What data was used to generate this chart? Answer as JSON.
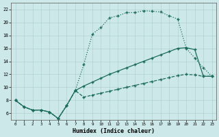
{
  "title": "",
  "xlabel": "Humidex (Indice chaleur)",
  "ylabel": "",
  "bg_color": "#cce8e8",
  "line_color": "#1a6b5a",
  "xlim": [
    -0.5,
    23.5
  ],
  "ylim": [
    5.0,
    23.0
  ],
  "xticks": [
    0,
    1,
    2,
    3,
    4,
    5,
    6,
    7,
    8,
    9,
    10,
    11,
    12,
    13,
    14,
    15,
    16,
    17,
    18,
    19,
    20,
    21,
    22,
    23
  ],
  "yticks": [
    6,
    8,
    10,
    12,
    14,
    16,
    18,
    20,
    22
  ],
  "curve1_x": [
    0,
    1,
    2,
    3,
    4,
    5,
    6,
    7,
    8,
    9,
    10,
    11,
    12,
    13,
    14,
    15,
    16,
    17,
    18,
    19,
    20,
    21,
    22,
    23
  ],
  "curve1_y": [
    8,
    7,
    6.5,
    6.5,
    6.2,
    5.2,
    7.2,
    9.5,
    13.5,
    18.2,
    19.2,
    20.7,
    21.0,
    21.5,
    21.5,
    21.8,
    21.7,
    21.6,
    21.0,
    20.5,
    16.0,
    14.5,
    13.0,
    11.7
  ],
  "curve2_x": [
    0,
    1,
    2,
    3,
    4,
    5,
    6,
    7,
    8,
    9,
    10,
    11,
    12,
    13,
    14,
    15,
    16,
    17,
    18,
    19,
    20,
    21,
    22,
    23
  ],
  "curve2_y": [
    8,
    7,
    6.5,
    6.5,
    6.2,
    5.2,
    7.2,
    9.5,
    10.2,
    10.8,
    11.4,
    12.0,
    12.5,
    13.0,
    13.5,
    14.0,
    14.5,
    15.0,
    15.5,
    16.0,
    16.1,
    15.8,
    11.7,
    11.7
  ],
  "curve3_x": [
    0,
    1,
    2,
    3,
    4,
    5,
    6,
    7,
    8,
    9,
    10,
    11,
    12,
    13,
    14,
    15,
    16,
    17,
    18,
    19,
    20,
    21,
    22,
    23
  ],
  "curve3_y": [
    8,
    7,
    6.5,
    6.5,
    6.2,
    5.2,
    7.2,
    9.5,
    8.5,
    8.8,
    9.1,
    9.4,
    9.7,
    10.0,
    10.3,
    10.6,
    10.9,
    11.2,
    11.5,
    11.8,
    12.0,
    11.9,
    11.7,
    11.7
  ],
  "marker": "+",
  "markersize": 3,
  "linewidth": 0.9
}
